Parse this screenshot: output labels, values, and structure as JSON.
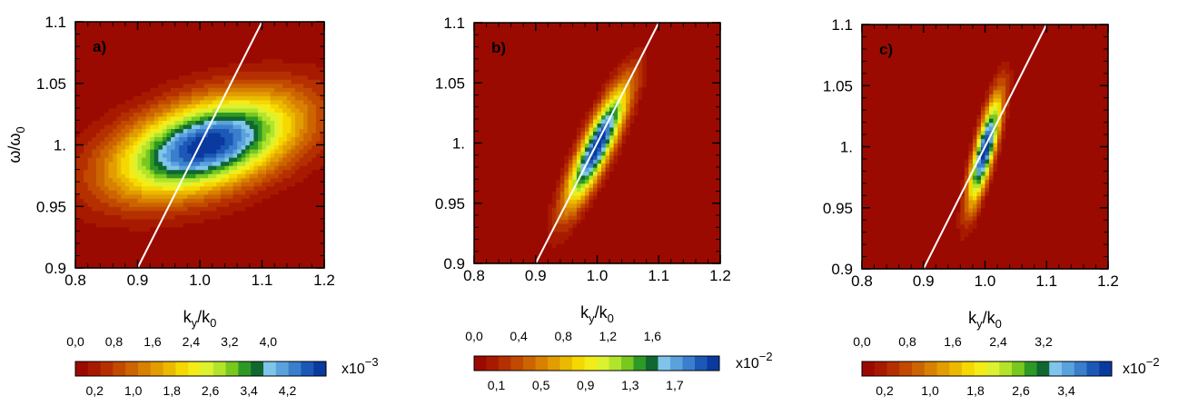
{
  "chart_data": [
    {
      "type": "heatmap",
      "panel_label": "a)",
      "xlabel": {
        "main": "k",
        "sub": "y",
        "sep": "/k",
        "sub2": "0"
      },
      "ylabel": {
        "main": "ω/ω",
        "sub": "0"
      },
      "xlim": [
        0.8,
        1.2
      ],
      "ylim": [
        0.9,
        1.1
      ],
      "x_ticks": [
        "0.8",
        "0.9",
        "1.0",
        "1.1",
        "1.2"
      ],
      "y_ticks": [
        "0.9",
        "0.95",
        "1.",
        "1.05",
        "1.1"
      ],
      "peak": {
        "x": 1.01,
        "y": 1.0,
        "sx": 0.1,
        "sy": 0.028,
        "rho": 0.45
      },
      "reference_line": {
        "from": [
          0.9,
          0.9
        ],
        "to": [
          1.1,
          1.1
        ],
        "color": "#ffffff"
      },
      "colorbar": {
        "top_ticks": [
          "0,0",
          "0,8",
          "1,6",
          "2,4",
          "3,2",
          "4,0"
        ],
        "bottom_ticks": [
          "0,2",
          "1,0",
          "1,8",
          "2,6",
          "3,4",
          "4,2"
        ],
        "multiplier": "x10",
        "exponent": "−3"
      }
    },
    {
      "type": "heatmap",
      "panel_label": "b)",
      "xlabel": {
        "main": "k",
        "sub": "y",
        "sep": "/k",
        "sub2": "0"
      },
      "xlim": [
        0.8,
        1.2
      ],
      "ylim": [
        0.9,
        1.1
      ],
      "x_ticks": [
        "0.8",
        "0.9",
        "1.0",
        "1.1",
        "1.2"
      ],
      "y_ticks": [
        "0.9",
        "0.95",
        "1.",
        "1.05",
        "1.1"
      ],
      "peak": {
        "x": 1.0,
        "y": 0.998,
        "sx": 0.034,
        "sy": 0.034,
        "rho": 0.86
      },
      "reference_line": {
        "from": [
          0.9,
          0.9
        ],
        "to": [
          1.1,
          1.1
        ],
        "color": "#ffffff"
      },
      "colorbar": {
        "top_ticks": [
          "0,0",
          "0,4",
          "0,8",
          "1,2",
          "1,6"
        ],
        "bottom_ticks": [
          "0,1",
          "0,5",
          "0,9",
          "1,3",
          "1,7"
        ],
        "multiplier": "x10",
        "exponent": "−2"
      }
    },
    {
      "type": "heatmap",
      "panel_label": "c)",
      "xlabel": {
        "main": "k",
        "sub": "y",
        "sep": "/k",
        "sub2": "0"
      },
      "xlim": [
        0.8,
        1.2
      ],
      "ylim": [
        0.9,
        1.1
      ],
      "x_ticks": [
        "0.8",
        "0.9",
        "1.0",
        "1.1",
        "1.2"
      ],
      "y_ticks": [
        "0.9",
        "0.95",
        "1.",
        "1.05",
        "1.1"
      ],
      "peak": {
        "x": 1.0,
        "y": 0.998,
        "sx": 0.018,
        "sy": 0.03,
        "rho": 0.8
      },
      "reference_line": {
        "from": [
          0.9,
          0.9
        ],
        "to": [
          1.1,
          1.1
        ],
        "color": "#ffffff"
      },
      "colorbar": {
        "top_ticks": [
          "0,0",
          "0,8",
          "1,6",
          "2,4",
          "3,2"
        ],
        "bottom_ticks": [
          "0,2",
          "1,0",
          "1,8",
          "2,6",
          "3,4"
        ],
        "multiplier": "x10",
        "exponent": "−2"
      }
    }
  ],
  "colormap": [
    "#9b0a00",
    "#a81a00",
    "#b53000",
    "#c24a00",
    "#cc6400",
    "#d88000",
    "#e29d00",
    "#ebba00",
    "#f5d800",
    "#f4ec18",
    "#dcf230",
    "#b2e42c",
    "#78c820",
    "#2e9a26",
    "#106830",
    "#80c4ec",
    "#5aa2dc",
    "#3a7ecc",
    "#1c58b6",
    "#0a3aa0"
  ]
}
